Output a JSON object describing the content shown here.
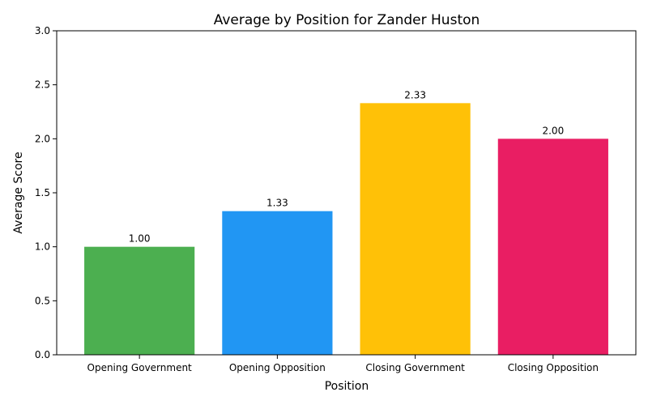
{
  "chart_data": {
    "type": "bar",
    "title": "Average by Position for Zander Huston",
    "xlabel": "Position",
    "ylabel": "Average Score",
    "categories": [
      "Opening Government",
      "Opening Opposition",
      "Closing Government",
      "Closing Opposition"
    ],
    "values": [
      1.0,
      1.33,
      2.33,
      2.0
    ],
    "value_labels": [
      "1.00",
      "1.33",
      "2.33",
      "2.00"
    ],
    "colors": [
      "#4caf50",
      "#2196f3",
      "#ffc107",
      "#e91e63"
    ],
    "ylim": [
      0,
      3
    ],
    "yticks": [
      0.0,
      0.5,
      1.0,
      1.5,
      2.0,
      2.5,
      3.0
    ],
    "ytick_labels": [
      "0.0",
      "0.5",
      "1.0",
      "1.5",
      "2.0",
      "2.5",
      "3.0"
    ],
    "grid": false,
    "legend": "none"
  }
}
